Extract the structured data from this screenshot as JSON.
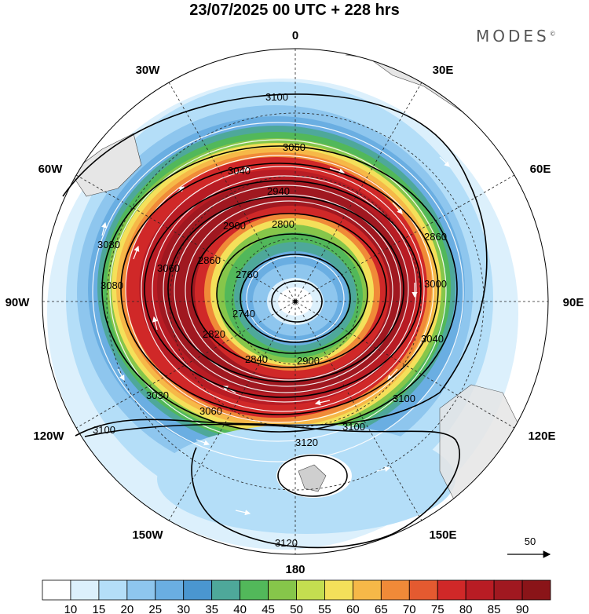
{
  "header": {
    "title": "23/07/2025  00 UTC  + 228 hrs",
    "brand": "MODES",
    "brand_mark": "©"
  },
  "map": {
    "projection": "polar-stereographic-south",
    "longitude_labels": {
      "top": "0",
      "top_left": "30W",
      "top_right": "30E",
      "upper_left": "60W",
      "upper_right": "60E",
      "left": "90W",
      "right": "90E",
      "lower_left": "120W",
      "lower_right": "120E",
      "bottom_left": "150W",
      "bottom_right": "150E",
      "bottom": "180"
    },
    "contour_labels": [
      "3100",
      "3060",
      "3040",
      "2940",
      "2900",
      "2860",
      "2800",
      "2760",
      "2740",
      "2820",
      "2840",
      "2900",
      "3060",
      "3080",
      "3030",
      "3100",
      "3120",
      "3120",
      "3100",
      "3080",
      "3060",
      "2860",
      "3000",
      "3040",
      "3100"
    ],
    "wind_reference": {
      "value": "50"
    }
  },
  "colorbar": {
    "colors": [
      "#ffffff",
      "#dcf0fc",
      "#b4def8",
      "#8ec6ee",
      "#6aaee2",
      "#4a96d0",
      "#4ea89a",
      "#52b85a",
      "#86c64a",
      "#c4de50",
      "#f4e05a",
      "#f6b848",
      "#f08a38",
      "#e45a30",
      "#d02828",
      "#b81c24",
      "#a01820",
      "#8a1418"
    ],
    "ticks": [
      "10",
      "15",
      "20",
      "25",
      "30",
      "35",
      "40",
      "45",
      "50",
      "55",
      "60",
      "65",
      "70",
      "75",
      "80",
      "85",
      "90"
    ]
  }
}
